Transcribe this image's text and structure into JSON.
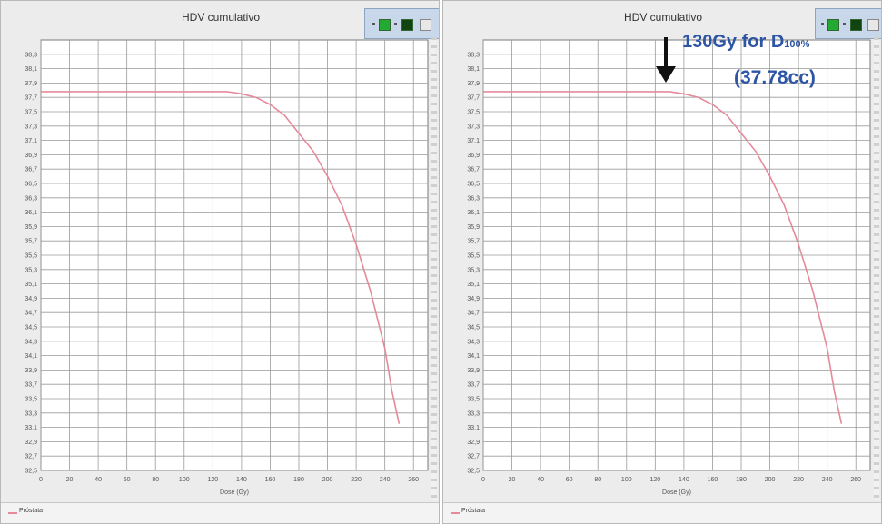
{
  "panels": [
    {
      "title": "HDV cumulativo",
      "xlabel": "Dose (Gy)",
      "legend_label": "Próstata",
      "annotation": null
    },
    {
      "title": "HDV cumulativo",
      "xlabel": "Dose (Gy)",
      "legend_label": "Próstata",
      "annotation": {
        "main": "130Gy for D",
        "subscript": "100%",
        "line2": "(37.78cc)"
      }
    }
  ],
  "chart_data": [
    {
      "type": "line",
      "title": "HDV cumulativo",
      "xlabel": "Dose (Gy)",
      "ylabel": "",
      "xlim": [
        0,
        270
      ],
      "ylim": [
        32.5,
        38.5
      ],
      "x_ticks": [
        "0",
        "20",
        "40",
        "60",
        "80",
        "100",
        "120",
        "140",
        "160",
        "180",
        "200",
        "220",
        "240",
        "260"
      ],
      "y_ticks": [
        "32,5",
        "32,7",
        "32,9",
        "33,1",
        "33,3",
        "33,5",
        "33,7",
        "33,9",
        "34,1",
        "34,3",
        "34,5",
        "34,7",
        "34,9",
        "35,1",
        "35,3",
        "35,5",
        "35,7",
        "35,9",
        "36,1",
        "36,3",
        "36,5",
        "36,7",
        "36,9",
        "37,1",
        "37,3",
        "37,5",
        "37,7",
        "37,9",
        "38,1",
        "38,3"
      ],
      "grid": true,
      "legend": "bottom-left",
      "series": [
        {
          "name": "Próstata",
          "color": "#e58a9b",
          "x": [
            0,
            60,
            100,
            130,
            140,
            150,
            160,
            170,
            180,
            190,
            200,
            210,
            220,
            230,
            240,
            245,
            250
          ],
          "y": [
            37.78,
            37.78,
            37.78,
            37.78,
            37.75,
            37.7,
            37.6,
            37.45,
            37.2,
            36.95,
            36.6,
            36.2,
            35.65,
            35.0,
            34.2,
            33.6,
            33.15
          ]
        }
      ]
    },
    {
      "type": "line",
      "title": "HDV cumulativo",
      "xlabel": "Dose (Gy)",
      "ylabel": "",
      "xlim": [
        0,
        270
      ],
      "ylim": [
        32.5,
        38.5
      ],
      "x_ticks": [
        "0",
        "20",
        "40",
        "60",
        "80",
        "100",
        "120",
        "140",
        "160",
        "180",
        "200",
        "220",
        "240",
        "260"
      ],
      "y_ticks": [
        "32,5",
        "32,7",
        "32,9",
        "33,1",
        "33,3",
        "33,5",
        "33,7",
        "33,9",
        "34,1",
        "34,3",
        "34,5",
        "34,7",
        "34,9",
        "35,1",
        "35,3",
        "35,5",
        "35,7",
        "35,9",
        "36,1",
        "36,3",
        "36,5",
        "36,7",
        "36,9",
        "37,1",
        "37,3",
        "37,5",
        "37,7",
        "37,9",
        "38,1",
        "38,3"
      ],
      "grid": true,
      "legend": "bottom-left",
      "series": [
        {
          "name": "Próstata",
          "color": "#e58a9b",
          "x": [
            0,
            60,
            100,
            130,
            140,
            150,
            160,
            170,
            180,
            190,
            200,
            210,
            220,
            230,
            240,
            245,
            250
          ],
          "y": [
            37.78,
            37.78,
            37.78,
            37.78,
            37.75,
            37.7,
            37.6,
            37.45,
            37.2,
            36.95,
            36.6,
            36.2,
            35.65,
            35.0,
            34.2,
            33.6,
            33.15
          ]
        }
      ]
    }
  ]
}
